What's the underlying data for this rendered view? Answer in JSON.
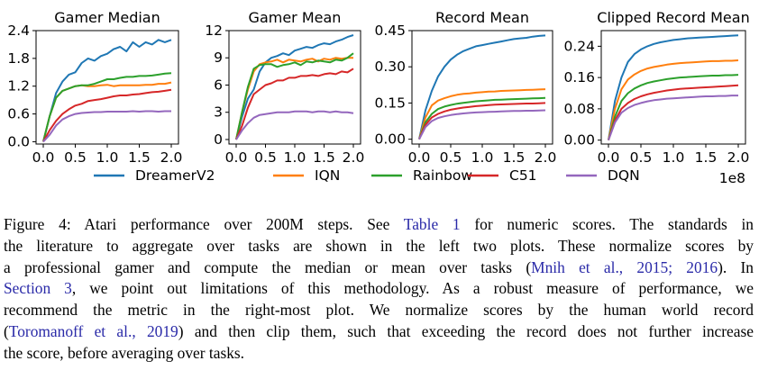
{
  "chart_data": [
    {
      "type": "line",
      "title": "Gamer Median",
      "xlabel": "",
      "ylabel": "",
      "xlim": [
        0,
        2.0
      ],
      "ylim": [
        -0.05,
        2.4
      ],
      "xticks": [
        "0.0",
        "0.5",
        "1.0",
        "1.5",
        "2.0"
      ],
      "yticks": [
        "0.0",
        "0.6",
        "1.2",
        "1.8",
        "2.4"
      ],
      "x": [
        0,
        0.1,
        0.2,
        0.3,
        0.4,
        0.5,
        0.6,
        0.7,
        0.8,
        0.9,
        1.0,
        1.1,
        1.2,
        1.3,
        1.4,
        1.5,
        1.6,
        1.7,
        1.8,
        1.9,
        2.0
      ],
      "series": [
        {
          "name": "DreamerV2",
          "values": [
            0.0,
            0.55,
            1.05,
            1.3,
            1.45,
            1.5,
            1.7,
            1.8,
            1.75,
            1.85,
            1.9,
            2.0,
            2.05,
            1.95,
            2.15,
            2.05,
            2.15,
            2.1,
            2.2,
            2.15,
            2.2
          ]
        },
        {
          "name": "IQN",
          "values": [
            0.0,
            0.55,
            0.95,
            1.1,
            1.15,
            1.2,
            1.22,
            1.2,
            1.2,
            1.22,
            1.23,
            1.2,
            1.22,
            1.22,
            1.22,
            1.22,
            1.23,
            1.23,
            1.25,
            1.25,
            1.28
          ]
        },
        {
          "name": "Rainbow",
          "values": [
            0.0,
            0.55,
            0.95,
            1.1,
            1.15,
            1.2,
            1.22,
            1.22,
            1.25,
            1.3,
            1.35,
            1.35,
            1.38,
            1.4,
            1.4,
            1.42,
            1.42,
            1.43,
            1.45,
            1.47,
            1.48
          ]
        },
        {
          "name": "C51",
          "values": [
            0.0,
            0.25,
            0.45,
            0.6,
            0.7,
            0.78,
            0.82,
            0.88,
            0.9,
            0.92,
            0.95,
            0.98,
            1.0,
            1.0,
            1.02,
            1.03,
            1.05,
            1.07,
            1.08,
            1.1,
            1.12
          ]
        },
        {
          "name": "DQN",
          "values": [
            0.0,
            0.15,
            0.35,
            0.48,
            0.55,
            0.6,
            0.62,
            0.63,
            0.64,
            0.64,
            0.65,
            0.65,
            0.65,
            0.65,
            0.66,
            0.65,
            0.66,
            0.66,
            0.65,
            0.66,
            0.66
          ]
        }
      ]
    },
    {
      "type": "line",
      "title": "Gamer Mean",
      "xlabel": "",
      "ylabel": "",
      "xlim": [
        0,
        2.0
      ],
      "ylim": [
        -0.5,
        12
      ],
      "xticks": [
        "0.0",
        "0.5",
        "1.0",
        "1.5",
        "2.0"
      ],
      "yticks": [
        "0",
        "3",
        "6",
        "9",
        "12"
      ],
      "x": [
        0,
        0.1,
        0.2,
        0.3,
        0.4,
        0.5,
        0.6,
        0.7,
        0.8,
        0.9,
        1.0,
        1.1,
        1.2,
        1.3,
        1.4,
        1.5,
        1.6,
        1.7,
        1.8,
        1.9,
        2.0
      ],
      "series": [
        {
          "name": "DreamerV2",
          "values": [
            0.0,
            2.5,
            4.5,
            5.5,
            7.5,
            8.5,
            9.0,
            9.2,
            9.5,
            9.3,
            9.8,
            10.0,
            10.2,
            10.1,
            10.4,
            10.6,
            10.5,
            10.8,
            11.0,
            11.3,
            11.5
          ]
        },
        {
          "name": "IQN",
          "values": [
            0.0,
            3.0,
            5.5,
            7.5,
            8.3,
            8.5,
            8.6,
            8.8,
            8.5,
            8.8,
            8.7,
            8.6,
            8.8,
            8.9,
            8.6,
            8.9,
            8.8,
            9.0,
            8.9,
            9.0,
            9.0
          ]
        },
        {
          "name": "Rainbow",
          "values": [
            0.0,
            3.0,
            5.8,
            7.8,
            8.2,
            8.3,
            8.3,
            8.0,
            8.2,
            8.3,
            8.5,
            8.2,
            8.6,
            8.5,
            8.7,
            8.6,
            8.5,
            8.8,
            8.7,
            9.0,
            9.5
          ]
        },
        {
          "name": "C51",
          "values": [
            0.0,
            1.5,
            3.5,
            5.0,
            5.5,
            6.0,
            6.2,
            6.5,
            6.5,
            6.8,
            6.8,
            7.0,
            7.0,
            7.1,
            7.0,
            7.2,
            7.3,
            7.2,
            7.5,
            7.4,
            7.8
          ]
        },
        {
          "name": "DQN",
          "values": [
            0.0,
            1.0,
            1.8,
            2.4,
            2.7,
            2.8,
            2.9,
            3.0,
            3.0,
            3.0,
            3.1,
            3.1,
            3.1,
            3.0,
            3.1,
            3.1,
            3.0,
            3.1,
            3.0,
            3.0,
            2.9
          ]
        }
      ]
    },
    {
      "type": "line",
      "title": "Record Mean",
      "xlabel": "",
      "ylabel": "",
      "xlim": [
        0,
        2.0
      ],
      "ylim": [
        -0.02,
        0.45
      ],
      "xticks": [
        "0.0",
        "0.5",
        "1.0",
        "1.5",
        "2.0"
      ],
      "yticks": [
        "0.00",
        "0.15",
        "0.30",
        "0.45"
      ],
      "x": [
        0,
        0.1,
        0.2,
        0.3,
        0.4,
        0.5,
        0.6,
        0.7,
        0.8,
        0.9,
        1.0,
        1.1,
        1.2,
        1.3,
        1.4,
        1.5,
        1.6,
        1.7,
        1.8,
        1.9,
        2.0
      ],
      "series": [
        {
          "name": "DreamerV2",
          "values": [
            0.0,
            0.12,
            0.2,
            0.26,
            0.3,
            0.33,
            0.35,
            0.365,
            0.375,
            0.385,
            0.39,
            0.395,
            0.4,
            0.405,
            0.41,
            0.415,
            0.418,
            0.42,
            0.425,
            0.428,
            0.43
          ]
        },
        {
          "name": "IQN",
          "values": [
            0.0,
            0.09,
            0.14,
            0.16,
            0.17,
            0.178,
            0.184,
            0.188,
            0.19,
            0.193,
            0.195,
            0.197,
            0.198,
            0.2,
            0.201,
            0.202,
            0.203,
            0.204,
            0.205,
            0.206,
            0.207
          ]
        },
        {
          "name": "Rainbow",
          "values": [
            0.0,
            0.07,
            0.105,
            0.125,
            0.135,
            0.142,
            0.147,
            0.151,
            0.154,
            0.157,
            0.159,
            0.161,
            0.163,
            0.164,
            0.165,
            0.166,
            0.167,
            0.168,
            0.169,
            0.17,
            0.171
          ]
        },
        {
          "name": "C51",
          "values": [
            0.0,
            0.06,
            0.09,
            0.105,
            0.115,
            0.122,
            0.127,
            0.131,
            0.134,
            0.137,
            0.139,
            0.141,
            0.143,
            0.144,
            0.145,
            0.146,
            0.147,
            0.148,
            0.148,
            0.149,
            0.15
          ]
        },
        {
          "name": "DQN",
          "values": [
            0.0,
            0.05,
            0.075,
            0.088,
            0.095,
            0.1,
            0.104,
            0.107,
            0.109,
            0.111,
            0.112,
            0.113,
            0.114,
            0.115,
            0.116,
            0.117,
            0.117,
            0.118,
            0.118,
            0.119,
            0.12
          ]
        }
      ]
    },
    {
      "type": "line",
      "title": "Clipped Record Mean",
      "xlabel": "",
      "ylabel": "",
      "xlim": [
        0,
        2.0
      ],
      "ylim": [
        -0.01,
        0.28
      ],
      "xticks": [
        "0.0",
        "0.5",
        "1.0",
        "1.5",
        "2.0"
      ],
      "yticks": [
        "0.00",
        "0.08",
        "0.16",
        "0.24"
      ],
      "x_offset_label": "1e8",
      "x": [
        0,
        0.1,
        0.2,
        0.3,
        0.4,
        0.5,
        0.6,
        0.7,
        0.8,
        0.9,
        1.0,
        1.1,
        1.2,
        1.3,
        1.4,
        1.5,
        1.6,
        1.7,
        1.8,
        1.9,
        2.0
      ],
      "series": [
        {
          "name": "DreamerV2",
          "values": [
            0.0,
            0.1,
            0.16,
            0.2,
            0.22,
            0.232,
            0.24,
            0.246,
            0.25,
            0.253,
            0.256,
            0.258,
            0.26,
            0.261,
            0.262,
            0.263,
            0.264,
            0.265,
            0.266,
            0.267,
            0.268
          ]
        },
        {
          "name": "IQN",
          "values": [
            0.0,
            0.08,
            0.13,
            0.155,
            0.168,
            0.177,
            0.183,
            0.187,
            0.19,
            0.193,
            0.195,
            0.197,
            0.198,
            0.199,
            0.2,
            0.201,
            0.202,
            0.202,
            0.203,
            0.203,
            0.204
          ]
        },
        {
          "name": "Rainbow",
          "values": [
            0.0,
            0.06,
            0.1,
            0.12,
            0.132,
            0.14,
            0.146,
            0.15,
            0.153,
            0.156,
            0.158,
            0.16,
            0.161,
            0.162,
            0.163,
            0.164,
            0.165,
            0.165,
            0.166,
            0.166,
            0.167
          ]
        },
        {
          "name": "C51",
          "values": [
            0.0,
            0.05,
            0.08,
            0.095,
            0.105,
            0.112,
            0.117,
            0.121,
            0.124,
            0.127,
            0.129,
            0.131,
            0.132,
            0.133,
            0.134,
            0.135,
            0.136,
            0.137,
            0.138,
            0.139,
            0.14
          ]
        },
        {
          "name": "DQN",
          "values": [
            0.0,
            0.045,
            0.07,
            0.082,
            0.09,
            0.095,
            0.099,
            0.102,
            0.104,
            0.106,
            0.107,
            0.108,
            0.109,
            0.11,
            0.111,
            0.112,
            0.112,
            0.113,
            0.113,
            0.114,
            0.114
          ]
        }
      ]
    }
  ],
  "legend": {
    "placement": "bottom",
    "entries": [
      {
        "label": "DreamerV2",
        "color": "#1f77b4"
      },
      {
        "label": "IQN",
        "color": "#ff7f0e"
      },
      {
        "label": "Rainbow",
        "color": "#2ca02c"
      },
      {
        "label": "C51",
        "color": "#d62728"
      },
      {
        "label": "DQN",
        "color": "#9467bd"
      }
    ]
  },
  "caption": {
    "prefix": "Figure 4: Atari performance over 200M steps. See ",
    "link_table": "Table 1",
    "mid1": " for numeric scores. The standards in",
    "line2": "the literature to aggregate over tasks are shown in the left two plots. These normalize scores by",
    "line3_a": "a professional gamer and compute the median or mean over tasks (",
    "cite_mnih": "Mnih et al., 2015; 2016",
    "line3_b": "). In",
    "link_section": "Section 3",
    "line4_b": ", we point out limitations of this methodology. As a robust measure of performance, we",
    "line5": "recommend the metric in the right-most plot. We normalize scores by the human world record",
    "line6_a": "(",
    "cite_toro": "Toromanoff et al., 2019",
    "line6_b": ") and then clip them, such that exceeding the record does not further increase",
    "line7": "the score, before averaging over tasks."
  }
}
